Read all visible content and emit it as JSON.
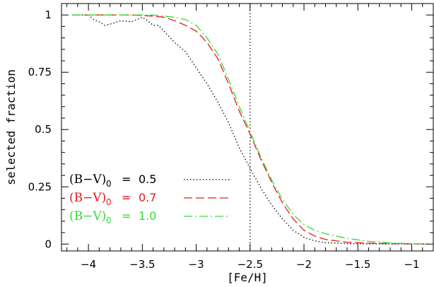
{
  "chart_data": {
    "type": "line",
    "title": "",
    "xlabel": "[Fe/H]",
    "ylabel": "selected fraction",
    "xlim": [
      -4.25,
      -0.8
    ],
    "ylim": [
      -0.03,
      1.05
    ],
    "x_ticks": [
      -4,
      -3.5,
      -3,
      -2.5,
      -2,
      -1.5,
      -1
    ],
    "x_tick_labels": [
      "−4",
      "−3.5",
      "−3",
      "−2.5",
      "−2",
      "−1.5",
      "−1"
    ],
    "y_ticks": [
      0,
      0.25,
      0.5,
      0.75,
      1
    ],
    "y_tick_labels": [
      "0",
      "0.25",
      "0.5",
      "0.75",
      "1"
    ],
    "vertical_line_x": -2.5,
    "grid": false,
    "legend_placement": "bottom-left",
    "series": [
      {
        "name": "(B−V)0 = 0.5",
        "legend_label": "(B−V)",
        "legend_sub": "0",
        "legend_eq": "=",
        "legend_value": "0.5",
        "color": "#000000",
        "dash": "1.5,3",
        "x": [
          -4.15,
          -4.0,
          -3.95,
          -3.9,
          -3.85,
          -3.8,
          -3.7,
          -3.6,
          -3.5,
          -3.45,
          -3.4,
          -3.35,
          -3.3,
          -3.25,
          -3.2,
          -3.1,
          -3.0,
          -2.9,
          -2.8,
          -2.7,
          -2.6,
          -2.5,
          -2.4,
          -2.3,
          -2.2,
          -2.1,
          -2.0,
          -1.9,
          -1.8,
          -1.6,
          -1.4,
          -1.2,
          -1.0,
          -0.85
        ],
        "y": [
          1.0,
          1.0,
          0.98,
          0.97,
          0.955,
          0.96,
          0.975,
          0.97,
          0.99,
          0.975,
          0.955,
          0.955,
          0.93,
          0.905,
          0.88,
          0.84,
          0.77,
          0.7,
          0.62,
          0.53,
          0.42,
          0.33,
          0.245,
          0.17,
          0.11,
          0.06,
          0.03,
          0.014,
          0.006,
          0.002,
          0.001,
          0.0,
          0.0,
          0.0
        ]
      },
      {
        "name": "(B−V)0 = 0.7",
        "legend_label": "(B−V)",
        "legend_sub": "0",
        "legend_eq": "=",
        "legend_value": "0.7",
        "color": "#e41a1c",
        "dash": "12,5",
        "x": [
          -4.15,
          -4.0,
          -3.8,
          -3.6,
          -3.4,
          -3.3,
          -3.2,
          -3.1,
          -3.0,
          -2.9,
          -2.8,
          -2.7,
          -2.6,
          -2.5,
          -2.4,
          -2.3,
          -2.2,
          -2.1,
          -2.0,
          -1.9,
          -1.8,
          -1.6,
          -1.4,
          -1.2,
          -1.0,
          -0.85
        ],
        "y": [
          1.0,
          1.0,
          1.0,
          1.0,
          0.995,
          0.99,
          0.975,
          0.955,
          0.93,
          0.88,
          0.81,
          0.7,
          0.58,
          0.48,
          0.37,
          0.27,
          0.18,
          0.11,
          0.06,
          0.035,
          0.02,
          0.008,
          0.004,
          0.002,
          0.001,
          0.0
        ]
      },
      {
        "name": "(B−V)0 = 1.0",
        "legend_label": "(B−V)",
        "legend_sub": "0",
        "legend_eq": "=",
        "legend_value": "1.0",
        "color": "#33dd33",
        "dash": "12,4,2,4",
        "x": [
          -4.15,
          -4.0,
          -3.8,
          -3.6,
          -3.4,
          -3.3,
          -3.2,
          -3.1,
          -3.0,
          -2.9,
          -2.8,
          -2.7,
          -2.6,
          -2.5,
          -2.4,
          -2.3,
          -2.2,
          -2.1,
          -2.0,
          -1.9,
          -1.8,
          -1.6,
          -1.4,
          -1.2,
          -1.0,
          -0.85
        ],
        "y": [
          1.0,
          1.0,
          1.0,
          1.0,
          1.0,
          0.995,
          0.99,
          0.98,
          0.955,
          0.9,
          0.83,
          0.72,
          0.6,
          0.49,
          0.38,
          0.28,
          0.195,
          0.13,
          0.085,
          0.06,
          0.045,
          0.025,
          0.012,
          0.005,
          0.002,
          0.0
        ]
      }
    ]
  }
}
